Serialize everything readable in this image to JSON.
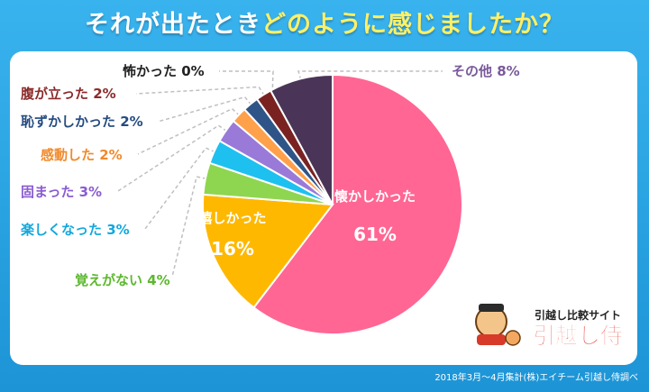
{
  "title": {
    "part1": "それが出たとき",
    "part2": "どのように感じましたか？"
  },
  "footer": "2018年3月～4月集計(株)エイチーム引越し侍調べ",
  "logo": {
    "tagline": "引越し比較サイト",
    "name": "引越し侍"
  },
  "chart_data": {
    "type": "pie",
    "slices": [
      {
        "label": "懐かしかった",
        "value": 61,
        "display": "61%",
        "color": "#ff6694"
      },
      {
        "label": "嬉しかった",
        "value": 16,
        "display": "16%",
        "color": "#ffb800"
      },
      {
        "label": "覚えがない",
        "value": 4,
        "display": "4%",
        "color": "#8ed650"
      },
      {
        "label": "楽しくなった",
        "value": 3,
        "display": "3%",
        "color": "#1ec0f0"
      },
      {
        "label": "固まった",
        "value": 3,
        "display": "3%",
        "color": "#9a7ad8"
      },
      {
        "label": "感動した",
        "value": 2,
        "display": "2%",
        "color": "#ffa04a"
      },
      {
        "label": "恥ずかしかった",
        "value": 2,
        "display": "2%",
        "color": "#2f5588"
      },
      {
        "label": "腹が立った",
        "value": 2,
        "display": "2%",
        "color": "#7a2222"
      },
      {
        "label": "怖かった",
        "value": 0,
        "display": "0%",
        "color": "#222222"
      },
      {
        "label": "その他",
        "value": 8,
        "display": "8%",
        "color": "#4a3558"
      }
    ]
  }
}
